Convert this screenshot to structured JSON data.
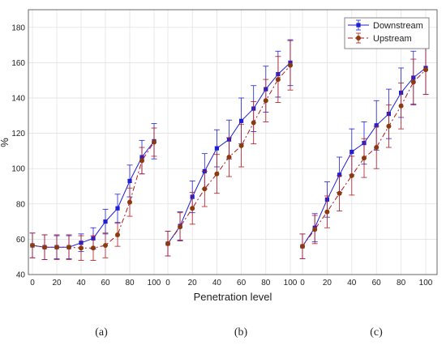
{
  "chart_data": {
    "type": "line",
    "ylabel": "%",
    "xlabel": "Penetration level",
    "ylim": [
      40,
      190
    ],
    "yticks": [
      40,
      60,
      80,
      100,
      120,
      140,
      160,
      180
    ],
    "xticks": [
      0,
      20,
      40,
      60,
      80,
      100
    ],
    "grid": true,
    "legend": {
      "position": "top-right",
      "entries": [
        "Downstream",
        "Upstream"
      ]
    },
    "x": [
      0,
      10,
      20,
      30,
      40,
      50,
      60,
      70,
      80,
      90,
      100
    ],
    "colors": {
      "Downstream": "#1f1fd6",
      "Upstream": "#b5141e",
      "upstream_marker": "#8b3a0e"
    },
    "panels": [
      {
        "label": "(a)",
        "series": [
          {
            "name": "Downstream",
            "values": [
              56.5,
              55.5,
              55.5,
              55.5,
              58,
              60.5,
              70,
              77.5,
              93,
              106.5,
              115.5
            ],
            "errors": [
              7,
              7,
              6.5,
              6.5,
              5,
              6,
              7,
              8,
              9,
              9.5,
              10
            ]
          },
          {
            "name": "Upstream",
            "values": [
              56.5,
              55.5,
              55.5,
              55.5,
              55,
              55,
              56.5,
              62.5,
              81,
              104.5,
              115
            ],
            "errors": [
              7,
              7,
              7,
              7,
              7,
              7,
              7,
              6.5,
              8,
              7.5,
              8
            ]
          }
        ]
      },
      {
        "label": "(b)",
        "series": [
          {
            "name": "Downstream",
            "values": [
              57.5,
              67.5,
              84,
              98.5,
              111.5,
              116.5,
              127,
              134,
              145,
              153.5,
              160
            ],
            "errors": [
              7,
              8,
              9,
              10,
              10.5,
              11,
              13,
              13,
              13,
              13,
              13
            ]
          },
          {
            "name": "Upstream",
            "values": [
              57.5,
              67,
              77.5,
              88.5,
              97,
              106.5,
              113,
              126,
              138.5,
              150.5,
              158.5
            ],
            "errors": [
              7,
              8,
              9,
              10,
              11,
              11,
              12,
              12,
              12,
              13,
              14
            ]
          }
        ]
      },
      {
        "label": "(c)",
        "series": [
          {
            "name": "Downstream",
            "values": [
              56,
              66.5,
              82.5,
              96.5,
              109.5,
              114.5,
              124.5,
              131,
              143,
              151.5,
              157
            ],
            "errors": [
              7,
              8,
              10,
              10,
              13,
              12,
              14,
              14,
              14,
              15,
              15
            ]
          },
          {
            "name": "Upstream",
            "values": [
              56,
              65.5,
              75.5,
              86,
              96,
              106,
              112,
              124,
              135.5,
              149,
              156
            ],
            "errors": [
              7,
              8,
              9,
              10,
              11,
              11,
              12,
              12,
              13,
              13,
              14
            ]
          }
        ]
      }
    ]
  }
}
